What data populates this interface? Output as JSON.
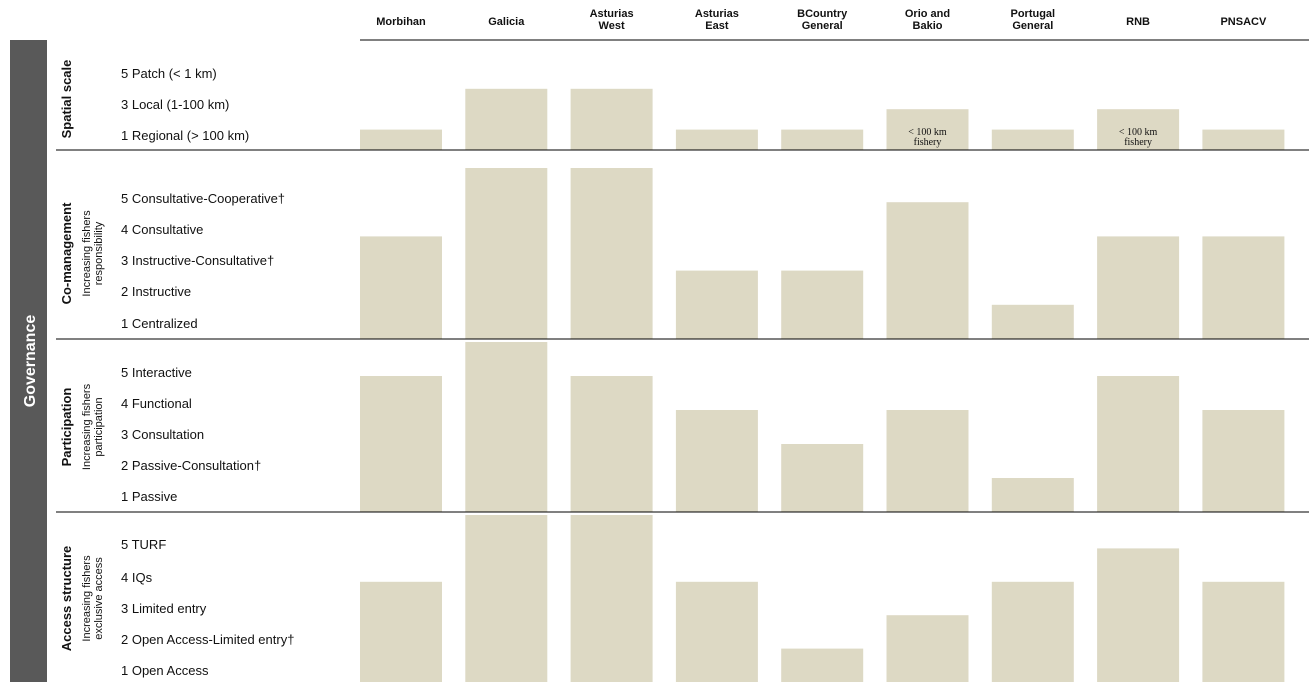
{
  "band_label": "Governance",
  "colors": {
    "bar": "#ddd9c4",
    "band": "#595959",
    "divider": "#000000"
  },
  "chart_data": {
    "type": "bar",
    "categories": [
      [
        "Morbihan"
      ],
      [
        "Galicia"
      ],
      [
        "Asturias",
        "West"
      ],
      [
        "Asturias",
        "East"
      ],
      [
        "BCountry",
        "General"
      ],
      [
        "Orio and",
        "Bakio"
      ],
      [
        "Portugal",
        "General"
      ],
      [
        "RNB"
      ],
      [
        "PNSACV"
      ]
    ],
    "panels": [
      {
        "title": "Spatial scale",
        "subtitle": [],
        "ylim": [
          0,
          5
        ],
        "levels": [
          "5 Patch (< 1 km)",
          "3 Local (1-100 km)",
          "1 Regional (> 100 km)"
        ],
        "values": [
          1,
          3,
          3,
          1,
          1,
          2,
          1,
          2,
          1
        ],
        "annotations": [
          {
            "category_index": 5,
            "text": [
              "< 100 km",
              "fishery"
            ]
          },
          {
            "category_index": 7,
            "text": [
              "< 100 km",
              "fishery"
            ]
          }
        ]
      },
      {
        "title": "Co-management",
        "subtitle": [
          "Increasing fishers",
          "responsibility"
        ],
        "ylim": [
          0,
          5
        ],
        "levels": [
          "5 Consultative-Cooperative†",
          "4 Consultative",
          "3 Instructive-Consultative†",
          "2 Instructive",
          "1 Centralized"
        ],
        "values": [
          3,
          5,
          5,
          2,
          2,
          4,
          1,
          3,
          3
        ],
        "annotations": []
      },
      {
        "title": "Participation",
        "subtitle": [
          "Increasing fishers",
          "participation"
        ],
        "ylim": [
          0,
          5
        ],
        "levels": [
          "5 Interactive",
          "4 Functional",
          "3 Consultation",
          "2 Passive-Consultation†",
          "1 Passive"
        ],
        "values": [
          4,
          5,
          4,
          3,
          2,
          3,
          1,
          4,
          3
        ],
        "annotations": []
      },
      {
        "title": "Access structure",
        "subtitle": [
          "Increasing fishers",
          "exclusive access"
        ],
        "ylim": [
          0,
          5
        ],
        "levels": [
          "5 TURF",
          "4 IQs",
          "3 Limited entry",
          "2 Open Access-Limited entry†",
          "1 Open Access"
        ],
        "values": [
          3,
          5,
          5,
          3,
          1,
          2,
          3,
          4,
          3
        ],
        "annotations": []
      }
    ]
  }
}
